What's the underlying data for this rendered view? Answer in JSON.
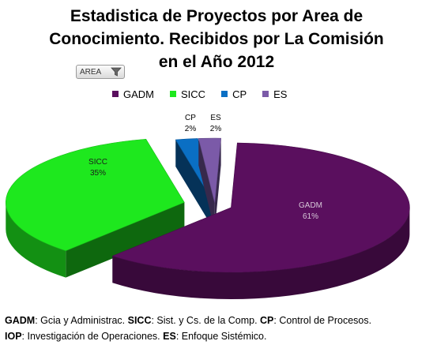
{
  "title_lines": [
    "Estadistica de Proyectos por Area de",
    "Conocimiento. Recibidos por La Comisión",
    "en el Año 2012"
  ],
  "filter": {
    "label": "AREA",
    "icon": "filter-dropdown-icon"
  },
  "chart_data": {
    "type": "pie",
    "style": "3d-exploded",
    "title": "Estadistica de Proyectos por Area de Conocimiento. Recibidos por La Comisión en el Año 2012",
    "legend_position": "top",
    "categories": [
      "GADM",
      "SICC",
      "CP",
      "ES"
    ],
    "values": [
      61,
      35,
      2,
      2
    ],
    "labels": [
      "61%",
      "35%",
      "2%",
      "2%"
    ],
    "colors": [
      "#5a0f5e",
      "#1ee81e",
      "#0a6fc4",
      "#7b5aa8"
    ]
  },
  "footnote": {
    "line1": [
      {
        "abbr": "GADM",
        "text": ": Gcia y Administrac.   "
      },
      {
        "abbr": "SICC",
        "text": ": Sist. y Cs. de la Comp.   "
      },
      {
        "abbr": "CP",
        "text": ": Control de Procesos."
      }
    ],
    "line2": [
      {
        "abbr": "IOP",
        "text": ": Investigación de Operaciones.    "
      },
      {
        "abbr": "ES",
        "text": ": Enfoque Sistémico."
      }
    ]
  }
}
